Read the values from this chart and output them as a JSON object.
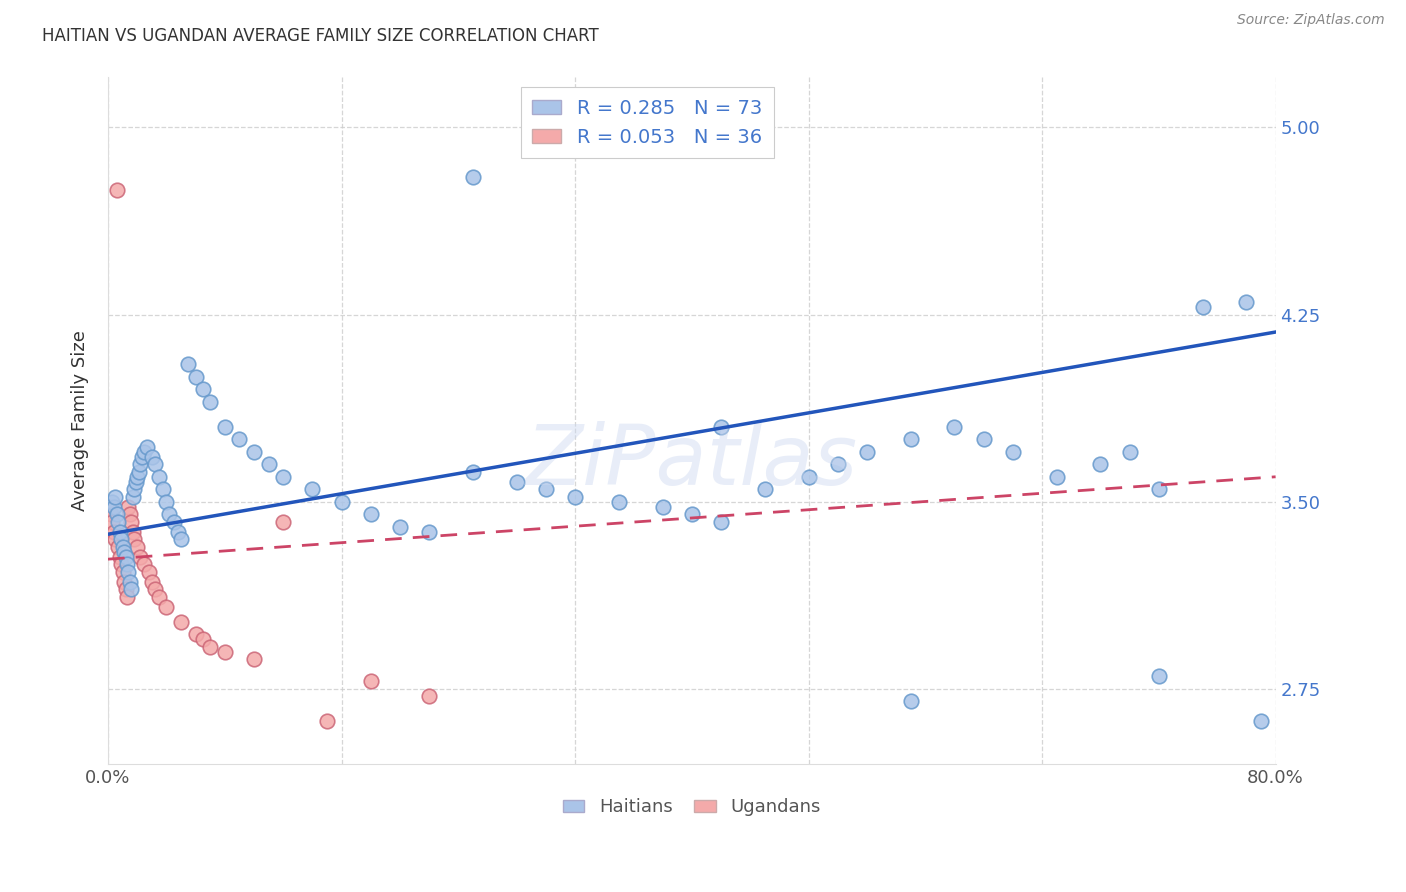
{
  "title": "HAITIAN VS UGANDAN AVERAGE FAMILY SIZE CORRELATION CHART",
  "source": "Source: ZipAtlas.com",
  "ylabel": "Average Family Size",
  "xlim": [
    0.0,
    0.8
  ],
  "ylim": [
    2.45,
    5.2
  ],
  "yticks": [
    2.75,
    3.5,
    4.25,
    5.0
  ],
  "background_color": "#ffffff",
  "grid_color": "#cccccc",
  "haitian_color": "#aac4e8",
  "haitian_edge": "#6699cc",
  "ugandan_color": "#f4aaaa",
  "ugandan_edge": "#cc6677",
  "haitian_line_color": "#2255bb",
  "ugandan_line_color": "#cc4466",
  "right_ytick_color": "#4477cc",
  "legend_R_haitian": "0.285",
  "legend_N_haitian": "73",
  "legend_R_ugandan": "0.053",
  "legend_N_ugandan": "36",
  "haitian_R": 0.285,
  "haitian_N": 73,
  "ugandan_R": 0.053,
  "ugandan_N": 36,
  "haitian_line_x0": 0.0,
  "haitian_line_y0": 3.37,
  "haitian_line_x1": 0.8,
  "haitian_line_y1": 4.18,
  "ugandan_line_x0": 0.0,
  "ugandan_line_y0": 3.27,
  "ugandan_line_x1": 0.8,
  "ugandan_line_y1": 3.6,
  "haitian_x": [
    0.003,
    0.004,
    0.005,
    0.006,
    0.007,
    0.008,
    0.009,
    0.01,
    0.011,
    0.012,
    0.013,
    0.014,
    0.015,
    0.016,
    0.017,
    0.018,
    0.019,
    0.02,
    0.021,
    0.022,
    0.023,
    0.025,
    0.027,
    0.03,
    0.032,
    0.035,
    0.038,
    0.04,
    0.042,
    0.045,
    0.048,
    0.05,
    0.055,
    0.06,
    0.065,
    0.07,
    0.08,
    0.09,
    0.1,
    0.11,
    0.12,
    0.14,
    0.16,
    0.18,
    0.2,
    0.22,
    0.25,
    0.28,
    0.3,
    0.32,
    0.35,
    0.38,
    0.4,
    0.42,
    0.45,
    0.48,
    0.5,
    0.52,
    0.55,
    0.58,
    0.6,
    0.62,
    0.65,
    0.68,
    0.7,
    0.72,
    0.75,
    0.78,
    0.79,
    0.25,
    0.42,
    0.55,
    0.72
  ],
  "haitian_y": [
    3.5,
    3.48,
    3.52,
    3.45,
    3.42,
    3.38,
    3.35,
    3.32,
    3.3,
    3.28,
    3.25,
    3.22,
    3.18,
    3.15,
    3.52,
    3.55,
    3.58,
    3.6,
    3.62,
    3.65,
    3.68,
    3.7,
    3.72,
    3.68,
    3.65,
    3.6,
    3.55,
    3.5,
    3.45,
    3.42,
    3.38,
    3.35,
    4.05,
    4.0,
    3.95,
    3.9,
    3.8,
    3.75,
    3.7,
    3.65,
    3.6,
    3.55,
    3.5,
    3.45,
    3.4,
    3.38,
    3.62,
    3.58,
    3.55,
    3.52,
    3.5,
    3.48,
    3.45,
    3.42,
    3.55,
    3.6,
    3.65,
    3.7,
    3.75,
    3.8,
    3.75,
    3.7,
    3.6,
    3.65,
    3.7,
    3.55,
    4.28,
    4.3,
    2.62,
    4.8,
    3.8,
    2.7,
    2.8
  ],
  "ugandan_x": [
    0.001,
    0.002,
    0.003,
    0.004,
    0.005,
    0.006,
    0.007,
    0.008,
    0.009,
    0.01,
    0.011,
    0.012,
    0.013,
    0.014,
    0.015,
    0.016,
    0.017,
    0.018,
    0.02,
    0.022,
    0.025,
    0.028,
    0.03,
    0.032,
    0.035,
    0.04,
    0.05,
    0.06,
    0.065,
    0.07,
    0.08,
    0.1,
    0.12,
    0.15,
    0.18,
    0.22
  ],
  "ugandan_y": [
    3.48,
    3.45,
    3.42,
    3.38,
    3.35,
    4.75,
    3.32,
    3.28,
    3.25,
    3.22,
    3.18,
    3.15,
    3.12,
    3.48,
    3.45,
    3.42,
    3.38,
    3.35,
    3.32,
    3.28,
    3.25,
    3.22,
    3.18,
    3.15,
    3.12,
    3.08,
    3.02,
    2.97,
    2.95,
    2.92,
    2.9,
    2.87,
    3.42,
    2.62,
    2.78,
    2.72
  ]
}
